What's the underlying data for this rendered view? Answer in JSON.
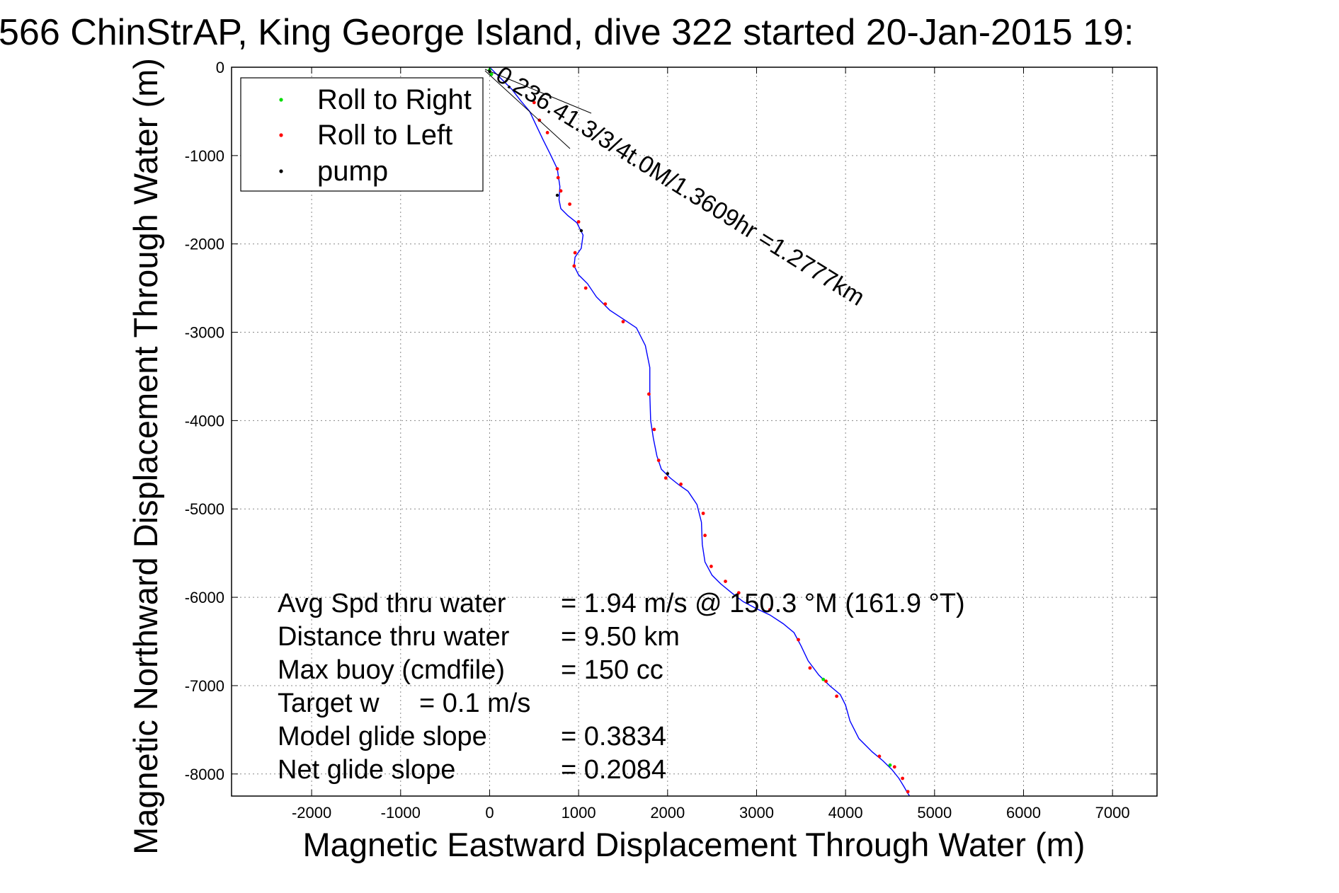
{
  "chart_data": {
    "type": "line",
    "title": "566 ChinStrAP, King George Island, dive 322 started 20-Jan-2015 19:",
    "xlabel": "Magnetic Eastward Displacement Through Water (m)",
    "ylabel": "Magnetic Northward Displacement Through Water (m)",
    "xlim": [
      -2900,
      7500
    ],
    "ylim": [
      -8250,
      0
    ],
    "xticks": [
      -2000,
      -1000,
      0,
      1000,
      2000,
      3000,
      4000,
      5000,
      6000,
      7000
    ],
    "yticks": [
      0,
      -1000,
      -2000,
      -3000,
      -4000,
      -5000,
      -6000,
      -7000,
      -8000
    ],
    "grid": true,
    "legend_position": "top-left",
    "legend": [
      {
        "label": "Roll to Right",
        "color": "#00dd00"
      },
      {
        "label": "Roll to Left",
        "color": "#ff0000"
      },
      {
        "label": "pump",
        "color": "#000000"
      }
    ],
    "track_color": "#0000ff",
    "series": [
      {
        "x": [
          0,
          120,
          250,
          350,
          450,
          520,
          600,
          680,
          760,
          790,
          780,
          800,
          880,
          980,
          1050,
          1030,
          960,
          950,
          1000,
          1100,
          1200,
          1350,
          1500,
          1650,
          1750,
          1800,
          1800,
          1810,
          1840,
          1880,
          1930,
          2030,
          2130,
          2230,
          2330,
          2380,
          2390,
          2420,
          2500,
          2600,
          2720,
          2850,
          3000,
          3150,
          3300,
          3420,
          3500,
          3580,
          3700,
          3820,
          3940,
          4000,
          4050,
          4150,
          4300,
          4420,
          4520,
          4600,
          4660,
          4700,
          4720
        ],
        "y": [
          0,
          -120,
          -250,
          -380,
          -500,
          -650,
          -820,
          -980,
          -1150,
          -1350,
          -1500,
          -1600,
          -1680,
          -1760,
          -1900,
          -2050,
          -2150,
          -2250,
          -2350,
          -2450,
          -2600,
          -2750,
          -2850,
          -2950,
          -3150,
          -3400,
          -3700,
          -4000,
          -4200,
          -4400,
          -4550,
          -4650,
          -4730,
          -4800,
          -4950,
          -5150,
          -5400,
          -5600,
          -5750,
          -5850,
          -5950,
          -6050,
          -6130,
          -6200,
          -6300,
          -6400,
          -6550,
          -6720,
          -6880,
          -7000,
          -7100,
          -7220,
          -7400,
          -7600,
          -7750,
          -7850,
          -7950,
          -8050,
          -8150,
          -8220,
          -8250
        ]
      }
    ],
    "roll_left_points": [
      [
        500,
        -400
      ],
      [
        560,
        -600
      ],
      [
        650,
        -740
      ],
      [
        760,
        -1150
      ],
      [
        770,
        -1250
      ],
      [
        800,
        -1400
      ],
      [
        900,
        -1550
      ],
      [
        1000,
        -1750
      ],
      [
        960,
        -2100
      ],
      [
        950,
        -2250
      ],
      [
        1080,
        -2500
      ],
      [
        1300,
        -2680
      ],
      [
        1500,
        -2880
      ],
      [
        1790,
        -3700
      ],
      [
        1850,
        -4100
      ],
      [
        1900,
        -4450
      ],
      [
        1980,
        -4650
      ],
      [
        2150,
        -4720
      ],
      [
        2400,
        -5050
      ],
      [
        2420,
        -5300
      ],
      [
        2490,
        -5650
      ],
      [
        2650,
        -5820
      ],
      [
        2800,
        -5950
      ],
      [
        3150,
        -6140
      ],
      [
        3470,
        -6480
      ],
      [
        3600,
        -6800
      ],
      [
        3780,
        -6950
      ],
      [
        3900,
        -7120
      ],
      [
        4380,
        -7800
      ],
      [
        4550,
        -7920
      ],
      [
        4640,
        -8050
      ],
      [
        4700,
        -8200
      ]
    ],
    "roll_right_points": [
      [
        0,
        -30
      ],
      [
        20,
        -80
      ],
      [
        3750,
        -6930
      ],
      [
        4500,
        -7900
      ]
    ],
    "pump_points": [
      [
        0,
        -50
      ],
      [
        760,
        -1450
      ],
      [
        1030,
        -1850
      ],
      [
        2000,
        -4600
      ]
    ],
    "annotation": "0.236.41.3/3/4t.0M/1.3609hr =1.2777km",
    "stats": [
      {
        "label": "Avg Spd thru water",
        "value": "=  1.94 m/s @ 150.3 °M (161.9 °T)"
      },
      {
        "label": "Distance thru water",
        "value": "=  9.50 km"
      },
      {
        "label": "Max buoy (cmdfile)",
        "value": "= 150 cc"
      },
      {
        "label": "Target w",
        "value": "= 0.1 m/s"
      },
      {
        "label": "Model glide slope",
        "value": "= 0.3834"
      },
      {
        "label": "Net glide slope",
        "value": "= 0.2084"
      }
    ]
  }
}
